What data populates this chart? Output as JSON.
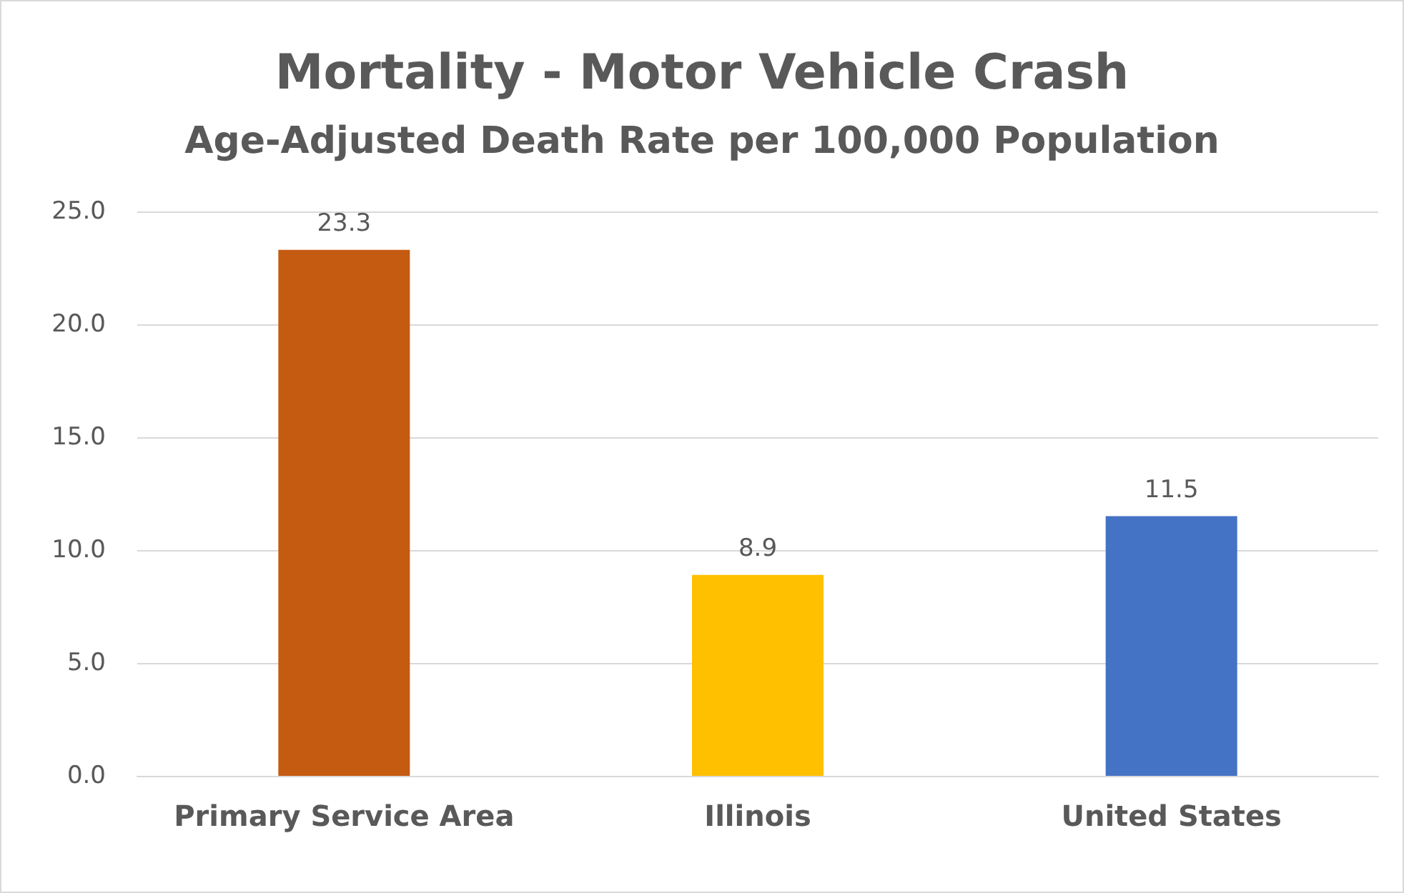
{
  "chart_data": {
    "type": "bar",
    "title": "Mortality - Motor Vehicle Crash",
    "subtitle": "Age-Adjusted Death Rate per 100,000 Population",
    "categories": [
      "Primary Service Area",
      "Illinois",
      "United States"
    ],
    "values": [
      23.3,
      8.9,
      11.5
    ],
    "colors": [
      "#c55a11",
      "#ffc000",
      "#4472c4"
    ],
    "ylim": [
      0,
      25
    ],
    "yticks": [
      {
        "value": 0,
        "label": "0.0"
      },
      {
        "value": 5,
        "label": "5.0"
      },
      {
        "value": 10,
        "label": "10.0"
      },
      {
        "value": 15,
        "label": "15.0"
      },
      {
        "value": 20,
        "label": "20.0"
      },
      {
        "value": 25,
        "label": "25.0"
      }
    ],
    "grid": "y",
    "data_labels": true
  }
}
